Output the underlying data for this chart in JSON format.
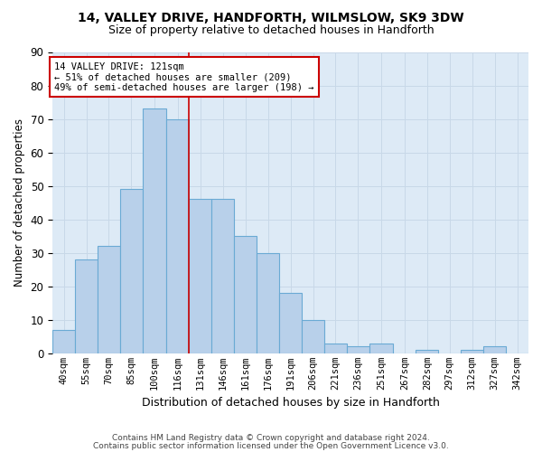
{
  "title1": "14, VALLEY DRIVE, HANDFORTH, WILMSLOW, SK9 3DW",
  "title2": "Size of property relative to detached houses in Handforth",
  "xlabel": "Distribution of detached houses by size in Handforth",
  "ylabel": "Number of detached properties",
  "categories": [
    "40sqm",
    "55sqm",
    "70sqm",
    "85sqm",
    "100sqm",
    "116sqm",
    "131sqm",
    "146sqm",
    "161sqm",
    "176sqm",
    "191sqm",
    "206sqm",
    "221sqm",
    "236sqm",
    "251sqm",
    "267sqm",
    "282sqm",
    "297sqm",
    "312sqm",
    "327sqm",
    "342sqm"
  ],
  "values": [
    7,
    28,
    32,
    49,
    73,
    70,
    46,
    46,
    35,
    30,
    18,
    10,
    3,
    2,
    3,
    0,
    1,
    0,
    1,
    2,
    0
  ],
  "bar_color": "#b8d0ea",
  "bar_edge_color": "#6aaad4",
  "bin_edges": [
    32.5,
    47.5,
    62.5,
    77.5,
    92.5,
    108.5,
    123.5,
    138.5,
    153.5,
    168.5,
    183.5,
    198.5,
    213.5,
    228.5,
    243.5,
    259.5,
    274.5,
    289.5,
    304.5,
    319.5,
    334.5,
    349.5
  ],
  "annotation_text": "14 VALLEY DRIVE: 121sqm\n← 51% of detached houses are smaller (209)\n49% of semi-detached houses are larger (198) →",
  "annotation_box_color": "#ffffff",
  "annotation_border_color": "#cc0000",
  "vline_color": "#cc0000",
  "vline_x": 123.5,
  "ylim": [
    0,
    90
  ],
  "yticks": [
    0,
    10,
    20,
    30,
    40,
    50,
    60,
    70,
    80,
    90
  ],
  "grid_color": "#c8d8e8",
  "background_color": "#ddeaf6",
  "footer_line1": "Contains HM Land Registry data © Crown copyright and database right 2024.",
  "footer_line2": "Contains public sector information licensed under the Open Government Licence v3.0."
}
